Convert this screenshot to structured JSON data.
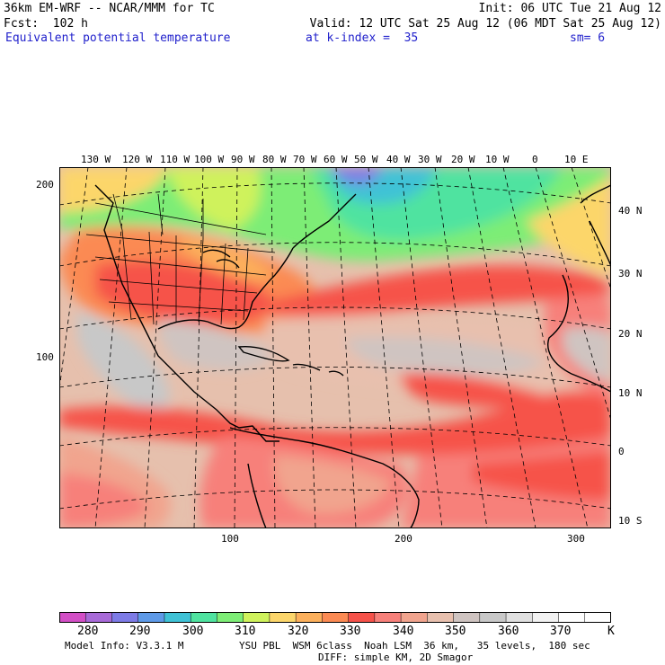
{
  "header": {
    "line1_left": "36km EM-WRF -- NCAR/MMM for TC",
    "line1_right": "Init: 06 UTC Tue 21 Aug 12",
    "line2_left": "Fcst:  102 h",
    "line2_right": "Valid: 12 UTC Sat 25 Aug 12 (06 MDT Sat 25 Aug 12)",
    "field": "Equivalent potential temperature",
    "level": "at k-index =  35",
    "smoothing": "sm= 6"
  },
  "map": {
    "projection": "Lambert conformal",
    "lon_labels": [
      "130 W",
      "120 W",
      "110 W",
      "100 W",
      "90 W",
      "80 W",
      "70 W",
      "60 W",
      "50 W",
      "40 W",
      "30 W",
      "20 W",
      "10 W",
      "0",
      "10 E"
    ],
    "lat_labels": [
      "40 N",
      "30 N",
      "20 N",
      "10 N",
      "0",
      "10 S"
    ],
    "grid_y_labels": [
      "200",
      "100"
    ],
    "grid_x_labels": [
      "100",
      "200",
      "300"
    ]
  },
  "colorbar": {
    "unit": "K",
    "min": 275,
    "max": 380,
    "step": 5,
    "tick_labels": [
      "280",
      "290",
      "300",
      "310",
      "320",
      "330",
      "340",
      "350",
      "360",
      "370"
    ],
    "colors": [
      "#d34fc6",
      "#a86ad8",
      "#7d7be6",
      "#5e9ae8",
      "#3fc2d6",
      "#4fe3a0",
      "#7ded76",
      "#cff25c",
      "#fcd66b",
      "#fcb05c",
      "#fb8a53",
      "#f6524a",
      "#f7807a",
      "#f1a48e",
      "#e8c0ae",
      "#cfc4c1",
      "#c8c8c8",
      "#e0e0e0",
      "#f2f2f2",
      "#ffffff",
      "#ffffff"
    ]
  },
  "footer": {
    "model_info": "Model Info: V3.3.1 M",
    "physics": "YSU PBL  WSM 6class  Noah LSM  36 km,   35 levels,  180 sec",
    "diffusion": "DIFF: simple KM, 2D Smagor"
  }
}
